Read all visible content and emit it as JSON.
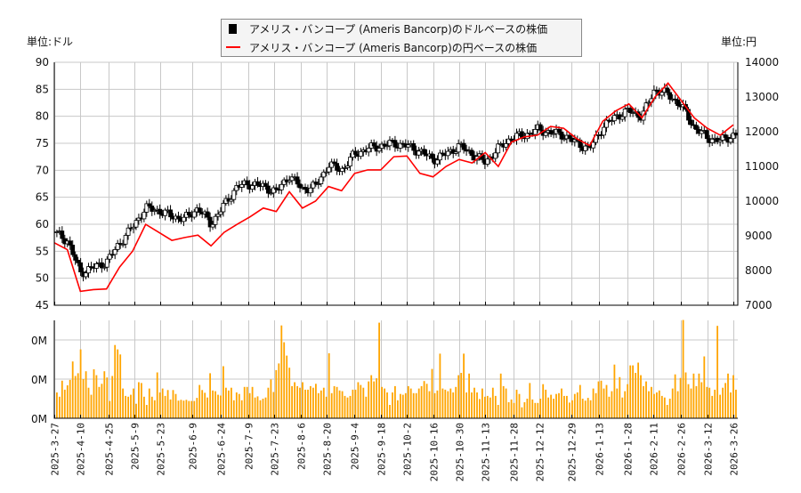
{
  "chart_data": [
    {
      "type": "candlestick+line",
      "legend": {
        "placement": "top-center",
        "entries": [
          {
            "label": "アメリス・バンコープ (Ameris Bancorp)のドルベースの株価",
            "color": "#000000",
            "marker": "square"
          },
          {
            "label": "アメリス・バンコープ (Ameris Bancorp)の円ベースの株価",
            "color": "#ff0000",
            "marker": "line"
          }
        ]
      },
      "left_unit": "単位:ドル",
      "right_unit": "単位:円",
      "ylim_left": [
        45,
        90
      ],
      "yticks_left": [
        "45",
        "50",
        "55",
        "60",
        "65",
        "70",
        "75",
        "80",
        "85",
        "90"
      ],
      "ylim_right": [
        7000,
        14000
      ],
      "yticks_right": [
        "7000",
        "8000",
        "9000",
        "10000",
        "11000",
        "12000",
        "13000",
        "14000"
      ],
      "grid": true,
      "x_start": "2025-03-27",
      "x_end": "2026-03-26",
      "weekly_dates": [
        "2025-03-27",
        "2025-04-03",
        "2025-04-10",
        "2025-04-17",
        "2025-04-24",
        "2025-05-01",
        "2025-05-08",
        "2025-05-15",
        "2025-05-22",
        "2025-05-29",
        "2025-06-05",
        "2025-06-12",
        "2025-06-19",
        "2025-06-26",
        "2025-07-03",
        "2025-07-10",
        "2025-07-17",
        "2025-07-24",
        "2025-07-31",
        "2025-08-07",
        "2025-08-14",
        "2025-08-21",
        "2025-08-28",
        "2025-09-04",
        "2025-09-11",
        "2025-09-18",
        "2025-09-25",
        "2025-10-02",
        "2025-10-09",
        "2025-10-16",
        "2025-10-23",
        "2025-10-30",
        "2025-11-06",
        "2025-11-13",
        "2025-11-20",
        "2025-11-27",
        "2025-12-04",
        "2025-12-11",
        "2025-12-18",
        "2025-12-25",
        "2026-01-01",
        "2026-01-08",
        "2026-01-15",
        "2026-01-22",
        "2026-01-29",
        "2026-02-05",
        "2026-02-12",
        "2026-02-19",
        "2026-02-26",
        "2026-03-05",
        "2026-03-12",
        "2026-03-19",
        "2026-03-26"
      ],
      "usd_close": [
        58.5,
        57,
        51,
        52,
        53,
        56.5,
        59.5,
        63,
        62.5,
        61.5,
        61,
        63,
        60,
        63.5,
        67,
        67.5,
        67,
        66,
        69,
        66.5,
        67,
        71,
        70,
        73,
        74,
        74.5,
        75,
        74.5,
        73.5,
        72,
        73,
        74.5,
        73,
        71.5,
        74,
        76,
        76.5,
        77.5,
        77,
        76.5,
        75,
        74,
        78,
        80,
        81,
        80,
        85,
        84,
        82,
        78,
        76,
        75.5,
        76.5
      ],
      "jpy_close": [
        8800,
        8600,
        7400,
        7450,
        7470,
        8100,
        8560,
        9330,
        9100,
        8870,
        8950,
        9020,
        8710,
        9100,
        9330,
        9550,
        9800,
        9700,
        10270,
        9800,
        10000,
        10420,
        10300,
        10800,
        10900,
        10900,
        11280,
        11300,
        10800,
        10700,
        11000,
        11200,
        11100,
        11400,
        11000,
        11700,
        11850,
        11900,
        12150,
        12100,
        11800,
        11600,
        12300,
        12600,
        12800,
        12400,
        13000,
        13400,
        12900,
        12400,
        12100,
        11900,
        12200
      ]
    },
    {
      "type": "bar",
      "name": "volume",
      "color": "#ffa500",
      "yticks": [
        "0M",
        "0M",
        "0M"
      ],
      "ylim": [
        0,
        2.5
      ],
      "values": [
        0.66,
        0.55,
        0.96,
        0.73,
        0.84,
        0.98,
        1.45,
        1.08,
        1.15,
        1.76,
        1.0,
        1.2,
        0.78,
        0.6,
        1.25,
        1.1,
        0.8,
        0.88,
        1.2,
        1.04,
        0.44,
        1.08,
        1.87,
        1.76,
        1.63,
        0.76,
        0.57,
        0.55,
        0.6,
        0.76,
        0.37,
        0.92,
        0.9,
        0.55,
        0.34,
        0.76,
        0.55,
        0.46,
        1.17,
        0.66,
        0.76,
        0.57,
        0.72,
        0.48,
        0.72,
        0.62,
        0.45,
        0.47,
        0.45,
        0.47,
        0.44,
        0.44,
        0.44,
        0.52,
        0.85,
        0.72,
        0.65,
        0.53,
        1.15,
        0.71,
        0.69,
        0.6,
        0.58,
        1.33,
        0.78,
        0.71,
        0.78,
        0.46,
        0.66,
        0.62,
        0.46,
        0.8,
        0.8,
        0.64,
        0.8,
        0.53,
        0.56,
        0.46,
        0.5,
        0.53,
        0.78,
        0.99,
        0.67,
        1.23,
        1.4,
        2.37,
        1.94,
        1.6,
        1.29,
        0.82,
        0.92,
        0.82,
        0.78,
        0.92,
        0.73,
        0.73,
        0.82,
        0.78,
        0.88,
        0.64,
        0.71,
        0.78,
        0.55,
        1.66,
        0.64,
        0.82,
        0.8,
        0.71,
        0.69,
        0.57,
        0.53,
        0.57,
        0.73,
        0.73,
        0.92,
        0.85,
        0.78,
        0.55,
        0.94,
        1.1,
        0.94,
        1.02,
        2.44,
        0.8,
        0.76,
        0.66,
        0.34,
        0.66,
        0.82,
        0.46,
        0.62,
        0.6,
        0.64,
        0.82,
        0.76,
        0.64,
        0.64,
        0.76,
        0.82,
        0.95,
        0.88,
        0.69,
        1.26,
        0.64,
        0.71,
        1.65,
        0.76,
        0.73,
        0.69,
        0.76,
        0.66,
        0.8,
        1.1,
        1.16,
        1.65,
        0.66,
        1.14,
        0.66,
        0.78,
        0.66,
        0.49,
        0.76,
        0.55,
        0.57,
        0.53,
        0.78,
        0.57,
        0.34,
        1.14,
        0.82,
        0.76,
        0.41,
        0.48,
        0.39,
        0.73,
        0.62,
        0.28,
        0.41,
        0.5,
        0.9,
        0.48,
        0.39,
        0.39,
        0.5,
        0.87,
        0.73,
        0.53,
        0.6,
        0.5,
        0.62,
        0.64,
        0.76,
        0.57,
        0.57,
        0.4,
        0.46,
        0.62,
        0.66,
        0.85,
        0.5,
        0.45,
        0.52,
        0.46,
        0.76,
        0.64,
        0.94,
        0.96,
        0.76,
        0.85,
        0.55,
        0.69,
        1.37,
        0.76,
        1.05,
        0.53,
        0.69,
        0.87,
        1.35,
        1.35,
        1.16,
        1.42,
        1.1,
        0.82,
        0.94,
        0.69,
        0.8,
        0.62,
        0.66,
        0.71,
        0.57,
        0.53,
        0.34,
        0.5,
        0.76,
        1.12,
        0.69,
        1.03,
        2.51,
        1.17,
        0.87,
        0.76,
        1.14,
        0.82,
        1.14,
        0.92,
        1.58,
        0.8,
        0.78,
        0.57,
        0.73,
        2.36,
        0.6,
        0.78,
        0.9,
        1.14,
        0.66,
        1.1,
        0.73
      ]
    }
  ],
  "x_ticks": [
    "2025-3-27",
    "2025-4-10",
    "2025-4-25",
    "2025-5-9",
    "2025-5-23",
    "2025-6-9",
    "2025-6-24",
    "2025-7-9",
    "2025-7-23",
    "2025-8-6",
    "2025-8-20",
    "2025-9-4",
    "2025-9-18",
    "2025-10-2",
    "2025-10-16",
    "2025-10-30",
    "2025-11-13",
    "2025-11-28",
    "2025-12-12",
    "2025-12-29",
    "2026-1-13",
    "2026-1-28",
    "2026-2-11",
    "2026-2-26",
    "2026-3-12",
    "2026-3-26"
  ]
}
